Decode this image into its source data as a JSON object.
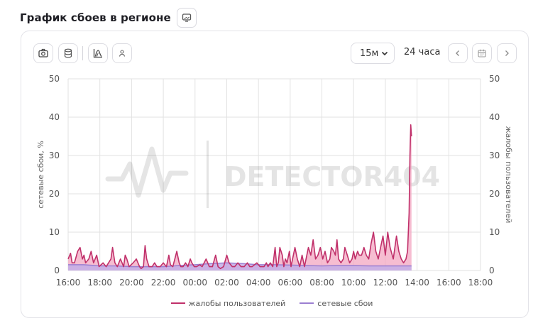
{
  "header": {
    "title": "График сбоев в регионе",
    "title_icon": "monitor-icon"
  },
  "toolbar": {
    "left_icons": [
      "camera-icon",
      "database-icon",
      "chart-area-icon",
      "user-icon"
    ],
    "interval": "15м",
    "range_label": "24 часа",
    "nav_icons": [
      "chevron-left-icon",
      "calendar-icon",
      "chevron-right-icon"
    ]
  },
  "watermark": "DETECTOR404",
  "colors": {
    "complaints": "#c0306a",
    "complaints_fill": "#f3a7c2",
    "outages": "#9b7fd1",
    "outages_fill": "#c3aee8",
    "grid": "#e2e2e2"
  },
  "chart_data": {
    "type": "area",
    "title": "",
    "xlabel": "",
    "ylabel": "сетевые сбои, %",
    "ylabel_right": "жалобы пользователей",
    "ylim": [
      0,
      50
    ],
    "yticks": [
      0,
      10,
      20,
      30,
      40,
      50
    ],
    "x_start": "16:00",
    "x_end": "18:00",
    "xticks": [
      "16:00",
      "18:00",
      "20:00",
      "22:00",
      "00:00",
      "02:00",
      "04:00",
      "06:00",
      "08:00",
      "10:00",
      "12:00",
      "14:00",
      "16:00",
      "18:00"
    ],
    "grid": true,
    "legend_position": "bottom",
    "series": [
      {
        "name": "жалобы пользователей",
        "axis": "right",
        "points": [
          [
            0.0,
            3
          ],
          [
            0.15,
            4.5
          ],
          [
            0.25,
            2
          ],
          [
            0.4,
            2
          ],
          [
            0.6,
            5
          ],
          [
            0.75,
            6
          ],
          [
            0.9,
            3
          ],
          [
            1.0,
            4
          ],
          [
            1.1,
            2
          ],
          [
            1.3,
            3
          ],
          [
            1.45,
            5
          ],
          [
            1.6,
            2
          ],
          [
            1.8,
            4
          ],
          [
            1.95,
            1
          ],
          [
            2.2,
            2
          ],
          [
            2.4,
            1
          ],
          [
            2.7,
            3
          ],
          [
            2.8,
            6
          ],
          [
            2.95,
            2
          ],
          [
            3.1,
            1
          ],
          [
            3.3,
            3
          ],
          [
            3.5,
            1
          ],
          [
            3.6,
            4
          ],
          [
            3.7,
            3
          ],
          [
            3.85,
            1
          ],
          [
            4.1,
            2
          ],
          [
            4.3,
            3
          ],
          [
            4.5,
            1
          ],
          [
            4.6,
            0.5
          ],
          [
            4.75,
            1
          ],
          [
            4.85,
            6.5
          ],
          [
            4.95,
            3
          ],
          [
            5.1,
            1
          ],
          [
            5.3,
            1
          ],
          [
            5.45,
            2
          ],
          [
            5.6,
            1
          ],
          [
            5.8,
            1
          ],
          [
            6.0,
            2
          ],
          [
            6.2,
            1
          ],
          [
            6.35,
            4
          ],
          [
            6.45,
            1.5
          ],
          [
            6.6,
            1
          ],
          [
            6.85,
            5
          ],
          [
            7.0,
            2
          ],
          [
            7.1,
            1
          ],
          [
            7.25,
            1
          ],
          [
            7.4,
            2
          ],
          [
            7.55,
            1
          ],
          [
            7.7,
            3
          ],
          [
            7.8,
            2
          ],
          [
            7.95,
            1
          ],
          [
            8.1,
            1
          ],
          [
            8.3,
            1.5
          ],
          [
            8.45,
            1
          ],
          [
            8.7,
            3
          ],
          [
            8.9,
            1
          ],
          [
            9.1,
            1
          ],
          [
            9.3,
            4
          ],
          [
            9.45,
            1
          ],
          [
            9.6,
            0.5
          ],
          [
            9.8,
            1
          ],
          [
            10.0,
            4
          ],
          [
            10.15,
            2
          ],
          [
            10.35,
            1
          ],
          [
            10.5,
            1
          ],
          [
            10.7,
            2
          ],
          [
            10.9,
            1
          ],
          [
            11.1,
            1
          ],
          [
            11.3,
            2
          ],
          [
            11.45,
            1
          ],
          [
            11.6,
            1
          ],
          [
            11.75,
            1.5
          ],
          [
            11.9,
            2
          ],
          [
            12.1,
            1
          ],
          [
            12.35,
            1
          ],
          [
            12.5,
            2
          ],
          [
            12.6,
            1
          ],
          [
            12.75,
            2
          ],
          [
            12.9,
            1
          ],
          [
            13.05,
            6
          ],
          [
            13.15,
            1
          ],
          [
            13.25,
            2
          ],
          [
            13.35,
            6
          ],
          [
            13.5,
            4
          ],
          [
            13.6,
            1
          ],
          [
            13.7,
            3
          ],
          [
            13.8,
            2
          ],
          [
            13.95,
            5
          ],
          [
            14.05,
            1
          ],
          [
            14.15,
            3
          ],
          [
            14.3,
            6
          ],
          [
            14.45,
            3
          ],
          [
            14.6,
            1
          ],
          [
            14.75,
            4
          ],
          [
            14.9,
            1
          ],
          [
            15.0,
            3
          ],
          [
            15.15,
            6
          ],
          [
            15.3,
            4
          ],
          [
            15.45,
            8
          ],
          [
            15.6,
            3
          ],
          [
            15.75,
            4
          ],
          [
            15.9,
            6
          ],
          [
            16.05,
            3
          ],
          [
            16.2,
            5
          ],
          [
            16.35,
            2
          ],
          [
            16.5,
            3
          ],
          [
            16.6,
            6
          ],
          [
            16.75,
            5
          ],
          [
            16.85,
            4
          ],
          [
            16.95,
            8
          ],
          [
            17.05,
            3
          ],
          [
            17.2,
            2
          ],
          [
            17.35,
            3
          ],
          [
            17.45,
            6
          ],
          [
            17.6,
            4
          ],
          [
            17.75,
            2
          ],
          [
            17.9,
            3
          ],
          [
            18.0,
            5
          ],
          [
            18.1,
            3
          ],
          [
            18.25,
            5
          ],
          [
            18.35,
            4
          ],
          [
            18.5,
            4
          ],
          [
            18.65,
            6
          ],
          [
            18.8,
            4
          ],
          [
            18.95,
            3
          ],
          [
            19.1,
            7
          ],
          [
            19.25,
            10
          ],
          [
            19.4,
            5
          ],
          [
            19.55,
            3
          ],
          [
            19.7,
            6
          ],
          [
            19.85,
            9
          ],
          [
            20.0,
            4
          ],
          [
            20.15,
            10
          ],
          [
            20.3,
            6
          ],
          [
            20.5,
            3
          ],
          [
            20.7,
            9
          ],
          [
            20.85,
            5
          ],
          [
            21.0,
            3
          ],
          [
            21.15,
            2
          ],
          [
            21.3,
            3
          ],
          [
            21.4,
            5
          ],
          [
            21.5,
            15
          ],
          [
            21.55,
            30
          ],
          [
            21.6,
            38
          ],
          [
            21.65,
            35
          ]
        ]
      },
      {
        "name": "сетевые сбои",
        "axis": "left",
        "points": [
          [
            0,
            1.5
          ],
          [
            1,
            1.5
          ],
          [
            2,
            1.2
          ],
          [
            3,
            1.2
          ],
          [
            4,
            1.0
          ],
          [
            5,
            1.0
          ],
          [
            6,
            1.0
          ],
          [
            7,
            1.3
          ],
          [
            8,
            1.5
          ],
          [
            9,
            1.8
          ],
          [
            10,
            2.0
          ],
          [
            11,
            1.8
          ],
          [
            12,
            1.5
          ],
          [
            13,
            1.5
          ],
          [
            14,
            1.4
          ],
          [
            15,
            1.3
          ],
          [
            16,
            1.2
          ],
          [
            17,
            1.3
          ],
          [
            18,
            1.3
          ],
          [
            19,
            1.2
          ],
          [
            20,
            1.2
          ],
          [
            21,
            1.2
          ],
          [
            21.65,
            1.2
          ]
        ]
      }
    ]
  }
}
